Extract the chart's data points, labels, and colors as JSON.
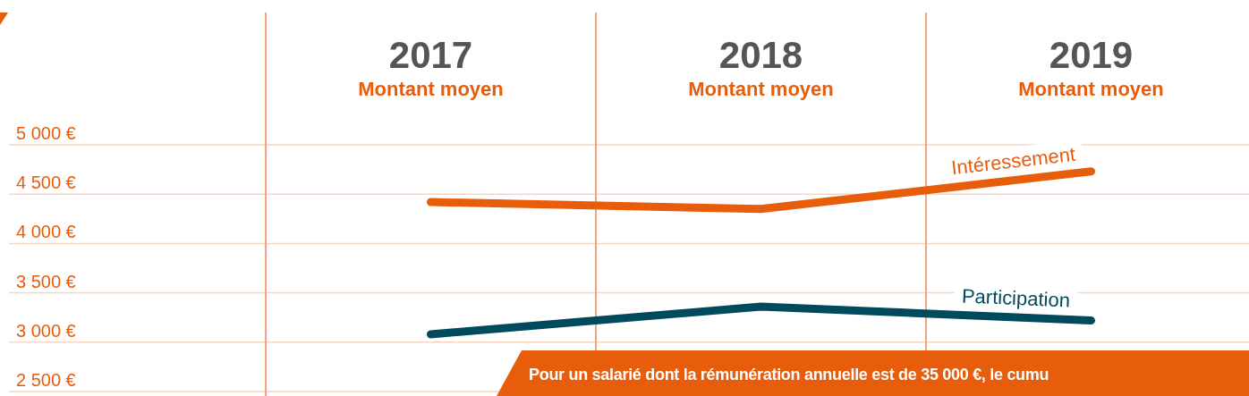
{
  "chart_data": {
    "type": "line",
    "categories": [
      "2017",
      "2018",
      "2019"
    ],
    "series": [
      {
        "name": "Intéressement",
        "color": "#e85d0c",
        "values": [
          4420,
          4350,
          4730
        ]
      },
      {
        "name": "Participation",
        "color": "#004a5e",
        "values": [
          3080,
          3360,
          3220
        ]
      }
    ],
    "ylim": [
      2500,
      5000
    ],
    "yticks": [
      {
        "value": 2500,
        "label": "2 500 €"
      },
      {
        "value": 3000,
        "label": "3 000 €"
      },
      {
        "value": 3500,
        "label": "3 500 €"
      },
      {
        "value": 4000,
        "label": "4 000 €"
      },
      {
        "value": 4500,
        "label": "4 500 €"
      },
      {
        "value": 5000,
        "label": "5 000 €"
      }
    ],
    "annotations": [
      "Montant moyen",
      "Montant moyen",
      "Montant moyen",
      "Pour un salarié dont la rémunération annuelle est de 35 000 €, le cumu"
    ],
    "grid": true,
    "legend": false,
    "marker": "none",
    "line_style": "solid"
  }
}
